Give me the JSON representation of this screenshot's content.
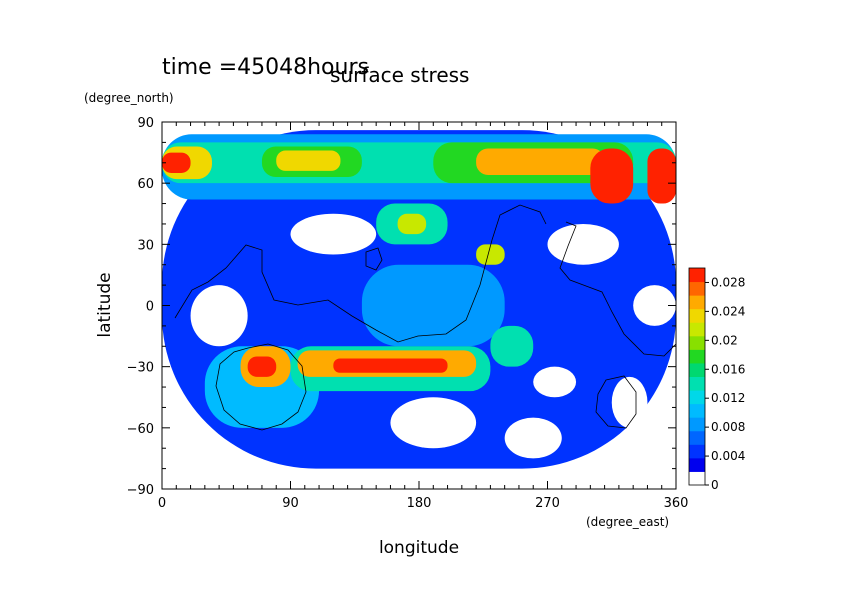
{
  "chart_data": {
    "type": "heatmap",
    "time_label": "time =45048hours",
    "title": "surface stress",
    "xlabel": "longitude",
    "ylabel": "latitude",
    "x_units": "(degree_east)",
    "y_units": "(degree_north)",
    "xlim": [
      0,
      360
    ],
    "ylim": [
      -90,
      90
    ],
    "x_ticks": [
      0,
      90,
      180,
      270,
      360
    ],
    "y_ticks": [
      -90,
      -60,
      -30,
      0,
      30,
      60,
      90
    ],
    "x_tick_labels": [
      "0",
      "90",
      "180",
      "270",
      "360"
    ],
    "y_tick_labels": [
      "−90",
      "−60",
      "−30",
      "0",
      "30",
      "60",
      "90"
    ],
    "colorbar": {
      "min": 0,
      "max": 0.03,
      "tick_values": [
        0,
        0.004,
        0.008,
        0.012,
        0.016,
        0.02,
        0.024,
        0.028
      ],
      "tick_labels": [
        "0",
        "0.004",
        "0.008",
        "0.012",
        "0.016",
        "0.02",
        "0.024",
        "0.028"
      ],
      "level_colors": [
        "#ffffff",
        "#0000ee",
        "#0033ff",
        "#0066ff",
        "#0099ff",
        "#00bbff",
        "#00d8e8",
        "#00e0b0",
        "#00d870",
        "#22d822",
        "#88e000",
        "#c8e800",
        "#f0d800",
        "#ffaa00",
        "#ff6600",
        "#ff2200"
      ]
    },
    "regions": [
      {
        "lon": [
          0,
          360
        ],
        "lat": [
          -90,
          90
        ],
        "value": 0.0
      },
      {
        "lon": [
          0,
          360
        ],
        "lat": [
          -80,
          86
        ],
        "value": 0.003
      },
      {
        "lon": [
          0,
          360
        ],
        "lat": [
          52,
          84
        ],
        "value": 0.007
      },
      {
        "lon": [
          0,
          360
        ],
        "lat": [
          60,
          80
        ],
        "value": 0.012
      },
      {
        "lon": [
          0,
          35
        ],
        "lat": [
          62,
          78
        ],
        "value": 0.022
      },
      {
        "lon": [
          0,
          20
        ],
        "lat": [
          65,
          75
        ],
        "value": 0.03
      },
      {
        "lon": [
          70,
          140
        ],
        "lat": [
          63,
          78
        ],
        "value": 0.016
      },
      {
        "lon": [
          80,
          125
        ],
        "lat": [
          66,
          76
        ],
        "value": 0.022
      },
      {
        "lon": [
          190,
          330
        ],
        "lat": [
          60,
          80
        ],
        "value": 0.016
      },
      {
        "lon": [
          220,
          310
        ],
        "lat": [
          64,
          77
        ],
        "value": 0.024
      },
      {
        "lon": [
          300,
          330
        ],
        "lat": [
          50,
          77
        ],
        "value": 0.03
      },
      {
        "lon": [
          340,
          360
        ],
        "lat": [
          50,
          77
        ],
        "value": 0.03
      },
      {
        "lon": [
          150,
          200
        ],
        "lat": [
          30,
          50
        ],
        "value": 0.012
      },
      {
        "lon": [
          165,
          185
        ],
        "lat": [
          35,
          45
        ],
        "value": 0.02
      },
      {
        "lon": [
          220,
          240
        ],
        "lat": [
          20,
          30
        ],
        "value": 0.02
      },
      {
        "lon": [
          140,
          240
        ],
        "lat": [
          -20,
          20
        ],
        "value": 0.006
      },
      {
        "lon": [
          30,
          110
        ],
        "lat": [
          -60,
          -20
        ],
        "value": 0.008
      },
      {
        "lon": [
          55,
          90
        ],
        "lat": [
          -40,
          -20
        ],
        "value": 0.024
      },
      {
        "lon": [
          60,
          80
        ],
        "lat": [
          -35,
          -25
        ],
        "value": 0.03
      },
      {
        "lon": [
          90,
          230
        ],
        "lat": [
          -42,
          -20
        ],
        "value": 0.012
      },
      {
        "lon": [
          95,
          220
        ],
        "lat": [
          -35,
          -22
        ],
        "value": 0.024
      },
      {
        "lon": [
          120,
          200
        ],
        "lat": [
          -33,
          -26
        ],
        "value": 0.03
      },
      {
        "lon": [
          230,
          260
        ],
        "lat": [
          -30,
          -10
        ],
        "value": 0.012
      }
    ],
    "zero_holes": [
      {
        "lon": [
          20,
          60
        ],
        "lat": [
          -20,
          10
        ]
      },
      {
        "lon": [
          90,
          150
        ],
        "lat": [
          25,
          45
        ]
      },
      {
        "lon": [
          260,
          290
        ],
        "lat": [
          -45,
          -30
        ]
      },
      {
        "lon": [
          270,
          320
        ],
        "lat": [
          20,
          40
        ]
      },
      {
        "lon": [
          330,
          360
        ],
        "lat": [
          -10,
          10
        ]
      },
      {
        "lon": [
          315,
          340
        ],
        "lat": [
          -60,
          -35
        ]
      },
      {
        "lon": [
          160,
          220
        ],
        "lat": [
          -70,
          -45
        ]
      },
      {
        "lon": [
          240,
          280
        ],
        "lat": [
          -75,
          -55
        ]
      }
    ]
  }
}
